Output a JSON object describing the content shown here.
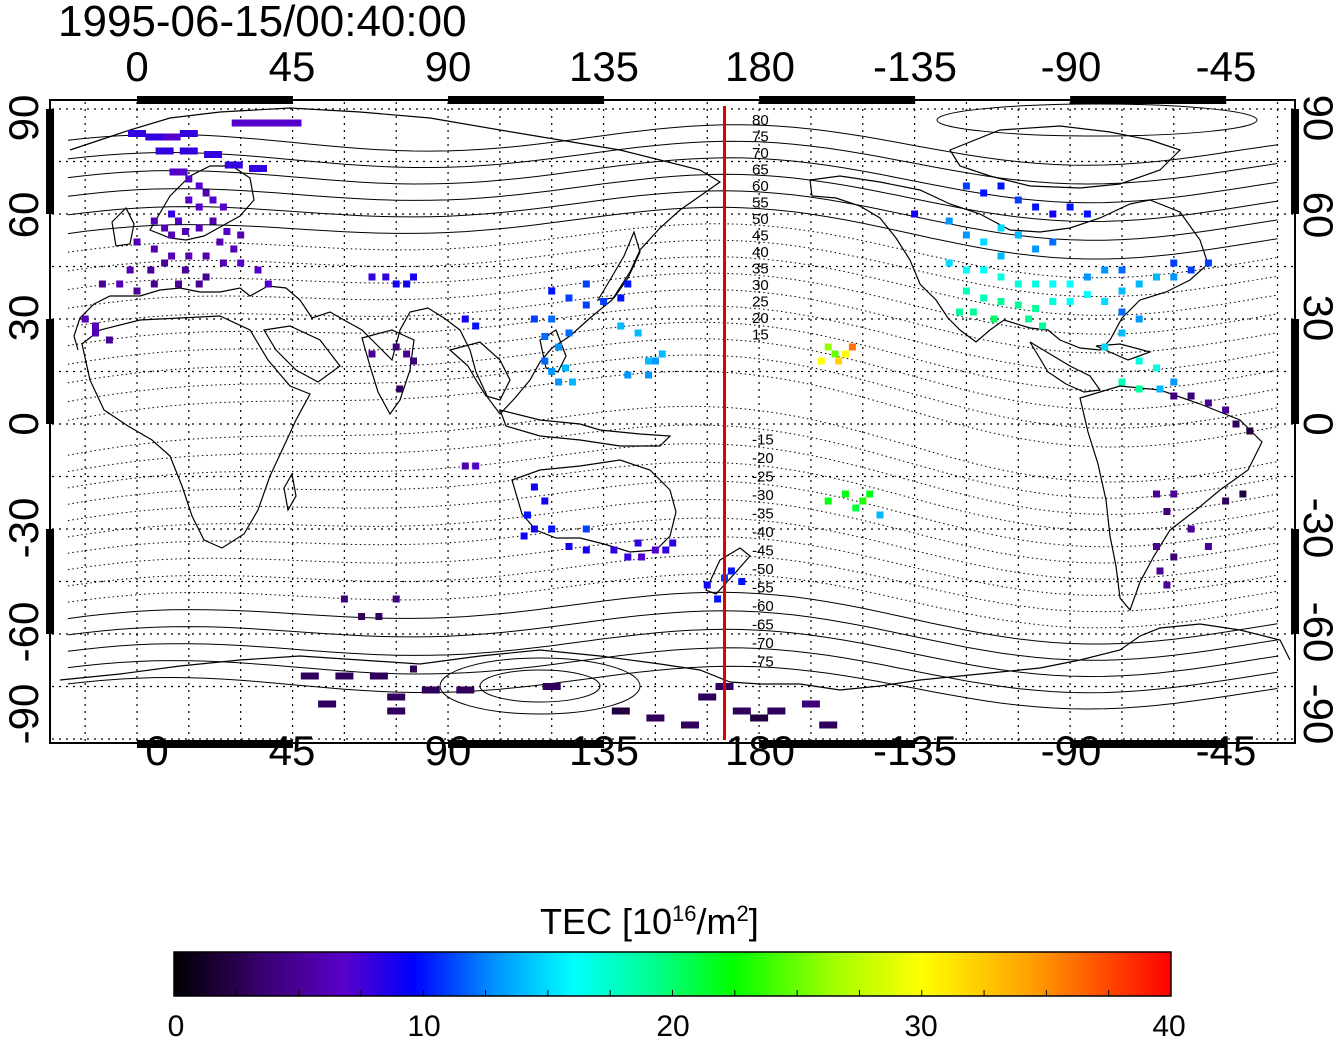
{
  "timestamp": "1995-06-15/00:40:00",
  "colors": {
    "marker_line": "#dd0000",
    "colormap": [
      "#000000",
      "#3a0070",
      "#5a00c8",
      "#0000ff",
      "#00a0ff",
      "#00ffff",
      "#00ff80",
      "#00ff00",
      "#b0ff00",
      "#ffff00",
      "#ff9000",
      "#ff0000"
    ]
  },
  "marker_longitude": 170,
  "top_axis": {
    "ticks": [
      "0",
      "45",
      "90",
      "135",
      "180",
      "-135",
      "-90",
      "-45"
    ]
  },
  "bottom_axis": {
    "ticks": [
      "0",
      "45",
      "90",
      "135",
      "180",
      "-135",
      "-90",
      "-45"
    ]
  },
  "left_axis": {
    "ticks": [
      "90",
      "60",
      "30",
      "0",
      "-30",
      "-60",
      "-90"
    ]
  },
  "right_axis": {
    "ticks": [
      "90",
      "60",
      "30",
      "0",
      "-30",
      "-60",
      "-90"
    ]
  },
  "contour_labels": [
    "80",
    "75",
    "70",
    "65",
    "60",
    "55",
    "50",
    "45",
    "40",
    "35",
    "30",
    "25",
    "20",
    "15",
    "-15",
    "-20",
    "-25",
    "-30",
    "-35",
    "-40",
    "-45",
    "-50",
    "-55",
    "-60",
    "-65",
    "-70",
    "-75"
  ],
  "colorbar": {
    "title_prefix": "TEC  [10",
    "title_exp": "16",
    "title_mid": "/m",
    "title_exp2": "2",
    "title_suffix": "]",
    "ticks": [
      "0",
      "10",
      "20",
      "30",
      "40"
    ],
    "range": [
      0,
      40
    ]
  },
  "chart_data": {
    "type": "scatter",
    "variable": "TEC",
    "timestamp": "1995-06-15/00:40:00",
    "xlim": [
      -25,
      335
    ],
    "ylim": [
      -92,
      92
    ],
    "colorbar_range": [
      0,
      40
    ],
    "points": [
      [
        0,
        83,
        8
      ],
      [
        5,
        82,
        8
      ],
      [
        10,
        82,
        7
      ],
      [
        15,
        83,
        8
      ],
      [
        30,
        86,
        7
      ],
      [
        35,
        86,
        7
      ],
      [
        40,
        86,
        7
      ],
      [
        45,
        86,
        7
      ],
      [
        8,
        78,
        8
      ],
      [
        15,
        78,
        8
      ],
      [
        22,
        77,
        8
      ],
      [
        28,
        74,
        8
      ],
      [
        35,
        73,
        8
      ],
      [
        12,
        72,
        7
      ],
      [
        15,
        70,
        7
      ],
      [
        18,
        68,
        7
      ],
      [
        20,
        66,
        6
      ],
      [
        22,
        64,
        7
      ],
      [
        25,
        62,
        7
      ],
      [
        15,
        64,
        7
      ],
      [
        18,
        62,
        7
      ],
      [
        10,
        60,
        8
      ],
      [
        12,
        58,
        7
      ],
      [
        5,
        58,
        6
      ],
      [
        8,
        56,
        6
      ],
      [
        10,
        54,
        6
      ],
      [
        14,
        55,
        6
      ],
      [
        18,
        56,
        6
      ],
      [
        22,
        58,
        6
      ],
      [
        26,
        55,
        7
      ],
      [
        30,
        54,
        6
      ],
      [
        28,
        50,
        6
      ],
      [
        24,
        52,
        6
      ],
      [
        0,
        52,
        6
      ],
      [
        5,
        50,
        6
      ],
      [
        10,
        48,
        6
      ],
      [
        15,
        48,
        6
      ],
      [
        20,
        48,
        6
      ],
      [
        25,
        46,
        6
      ],
      [
        30,
        46,
        7
      ],
      [
        35,
        44,
        7
      ],
      [
        38,
        40,
        7
      ],
      [
        -2,
        44,
        6
      ],
      [
        4,
        44,
        5
      ],
      [
        8,
        46,
        5
      ],
      [
        14,
        44,
        5
      ],
      [
        20,
        42,
        5
      ],
      [
        18,
        40,
        5
      ],
      [
        12,
        40,
        5
      ],
      [
        5,
        40,
        5
      ],
      [
        0,
        38,
        5
      ],
      [
        -5,
        40,
        6
      ],
      [
        -10,
        40,
        5
      ],
      [
        -15,
        30,
        6
      ],
      [
        -12,
        28,
        6
      ],
      [
        -8,
        24,
        5
      ],
      [
        -12,
        26,
        6
      ],
      [
        68,
        42,
        8
      ],
      [
        72,
        42,
        8
      ],
      [
        75,
        40,
        9
      ],
      [
        78,
        40,
        9
      ],
      [
        80,
        42,
        9
      ],
      [
        95,
        30,
        9
      ],
      [
        98,
        28,
        10
      ],
      [
        68,
        20,
        5
      ],
      [
        75,
        22,
        4
      ],
      [
        78,
        20,
        5
      ],
      [
        80,
        18,
        4
      ],
      [
        76,
        10,
        3
      ],
      [
        120,
        38,
        10
      ],
      [
        125,
        36,
        11
      ],
      [
        130,
        34,
        11
      ],
      [
        135,
        35,
        11
      ],
      [
        140,
        36,
        10
      ],
      [
        142,
        40,
        10
      ],
      [
        130,
        40,
        11
      ],
      [
        115,
        30,
        11
      ],
      [
        120,
        30,
        12
      ],
      [
        118,
        25,
        12
      ],
      [
        122,
        22,
        13
      ],
      [
        125,
        26,
        12
      ],
      [
        118,
        18,
        12
      ],
      [
        120,
        15,
        13
      ],
      [
        122,
        12,
        13
      ],
      [
        124,
        16,
        14
      ],
      [
        126,
        12,
        14
      ],
      [
        140,
        28,
        14
      ],
      [
        145,
        26,
        14
      ],
      [
        148,
        18,
        14
      ],
      [
        150,
        18,
        13
      ],
      [
        152,
        20,
        14
      ],
      [
        142,
        14,
        13
      ],
      [
        148,
        14,
        13
      ],
      [
        95,
        -12,
        6
      ],
      [
        98,
        -12,
        7
      ],
      [
        115,
        -18,
        9
      ],
      [
        118,
        -22,
        9
      ],
      [
        113,
        -26,
        10
      ],
      [
        115,
        -30,
        9
      ],
      [
        112,
        -32,
        9
      ],
      [
        120,
        -30,
        10
      ],
      [
        130,
        -30,
        11
      ],
      [
        125,
        -35,
        9
      ],
      [
        130,
        -36,
        9
      ],
      [
        138,
        -36,
        8
      ],
      [
        142,
        -38,
        8
      ],
      [
        146,
        -38,
        7
      ],
      [
        150,
        -36,
        7
      ],
      [
        153,
        -36,
        8
      ],
      [
        155,
        -34,
        8
      ],
      [
        145,
        -34,
        8
      ],
      [
        165,
        -46,
        9
      ],
      [
        170,
        -44,
        11
      ],
      [
        172,
        -42,
        10
      ],
      [
        175,
        -45,
        10
      ],
      [
        168,
        -50,
        10
      ],
      [
        200,
        22,
        26
      ],
      [
        205,
        20,
        30
      ],
      [
        203,
        18,
        32
      ],
      [
        207,
        22,
        36
      ],
      [
        198,
        18,
        30
      ],
      [
        202,
        20,
        25
      ],
      [
        200,
        -22,
        22
      ],
      [
        205,
        -20,
        22
      ],
      [
        210,
        -22,
        23
      ],
      [
        208,
        -24,
        21
      ],
      [
        212,
        -20,
        22
      ],
      [
        215,
        -26,
        14
      ],
      [
        240,
        68,
        11
      ],
      [
        245,
        66,
        10
      ],
      [
        250,
        68,
        10
      ],
      [
        255,
        64,
        11
      ],
      [
        260,
        62,
        10
      ],
      [
        265,
        60,
        9
      ],
      [
        270,
        62,
        10
      ],
      [
        275,
        60,
        10
      ],
      [
        225,
        60,
        9
      ],
      [
        235,
        58,
        13
      ],
      [
        240,
        54,
        13
      ],
      [
        245,
        52,
        15
      ],
      [
        250,
        56,
        15
      ],
      [
        255,
        54,
        14
      ],
      [
        260,
        50,
        13
      ],
      [
        265,
        52,
        12
      ],
      [
        250,
        48,
        14
      ],
      [
        235,
        46,
        15
      ],
      [
        240,
        44,
        16
      ],
      [
        245,
        44,
        16
      ],
      [
        250,
        42,
        17
      ],
      [
        255,
        40,
        17
      ],
      [
        260,
        40,
        17
      ],
      [
        265,
        40,
        16
      ],
      [
        270,
        40,
        16
      ],
      [
        240,
        38,
        18
      ],
      [
        245,
        36,
        18
      ],
      [
        250,
        35,
        19
      ],
      [
        255,
        34,
        19
      ],
      [
        260,
        33,
        19
      ],
      [
        265,
        35,
        17
      ],
      [
        270,
        35,
        16
      ],
      [
        275,
        37,
        16
      ],
      [
        280,
        35,
        15
      ],
      [
        238,
        32,
        19
      ],
      [
        242,
        32,
        19
      ],
      [
        248,
        30,
        20
      ],
      [
        258,
        30,
        19
      ],
      [
        262,
        28,
        19
      ],
      [
        285,
        38,
        14
      ],
      [
        290,
        40,
        14
      ],
      [
        295,
        42,
        14
      ],
      [
        300,
        42,
        13
      ],
      [
        285,
        44,
        12
      ],
      [
        280,
        44,
        13
      ],
      [
        275,
        42,
        13
      ],
      [
        300,
        46,
        11
      ],
      [
        305,
        44,
        11
      ],
      [
        310,
        46,
        11
      ],
      [
        285,
        32,
        12
      ],
      [
        290,
        30,
        13
      ],
      [
        285,
        26,
        14
      ],
      [
        280,
        22,
        15
      ],
      [
        290,
        18,
        17
      ],
      [
        295,
        16,
        17
      ],
      [
        285,
        12,
        18
      ],
      [
        290,
        10,
        19
      ],
      [
        300,
        12,
        13
      ],
      [
        296,
        10,
        14
      ],
      [
        300,
        8,
        4
      ],
      [
        305,
        8,
        4
      ],
      [
        310,
        6,
        5
      ],
      [
        315,
        4,
        5
      ],
      [
        318,
        0,
        3
      ],
      [
        322,
        -2,
        2
      ],
      [
        295,
        -20,
        5
      ],
      [
        300,
        -20,
        5
      ],
      [
        298,
        -25,
        4
      ],
      [
        305,
        -30,
        5
      ],
      [
        295,
        -35,
        5
      ],
      [
        300,
        -38,
        4
      ],
      [
        310,
        -35,
        5
      ],
      [
        296,
        -42,
        5
      ],
      [
        298,
        -46,
        5
      ],
      [
        320,
        -20,
        2
      ],
      [
        315,
        -22,
        3
      ],
      [
        60,
        -50,
        4
      ],
      [
        65,
        -55,
        3
      ],
      [
        70,
        -55,
        3
      ],
      [
        75,
        -50,
        4
      ],
      [
        50,
        -72,
        3
      ],
      [
        60,
        -72,
        3
      ],
      [
        70,
        -72,
        3
      ],
      [
        80,
        -70,
        3
      ],
      [
        55,
        -80,
        3
      ],
      [
        75,
        -78,
        3
      ],
      [
        75,
        -82,
        3
      ],
      [
        85,
        -76,
        3
      ],
      [
        95,
        -76,
        3
      ],
      [
        120,
        -75,
        3
      ],
      [
        140,
        -82,
        2
      ],
      [
        150,
        -84,
        3
      ],
      [
        160,
        -86,
        3
      ],
      [
        165,
        -78,
        3
      ],
      [
        170,
        -75,
        3
      ],
      [
        175,
        -82,
        3
      ],
      [
        180,
        -84,
        2
      ],
      [
        185,
        -82,
        3
      ],
      [
        195,
        -80,
        4
      ],
      [
        200,
        -86,
        3
      ]
    ]
  }
}
